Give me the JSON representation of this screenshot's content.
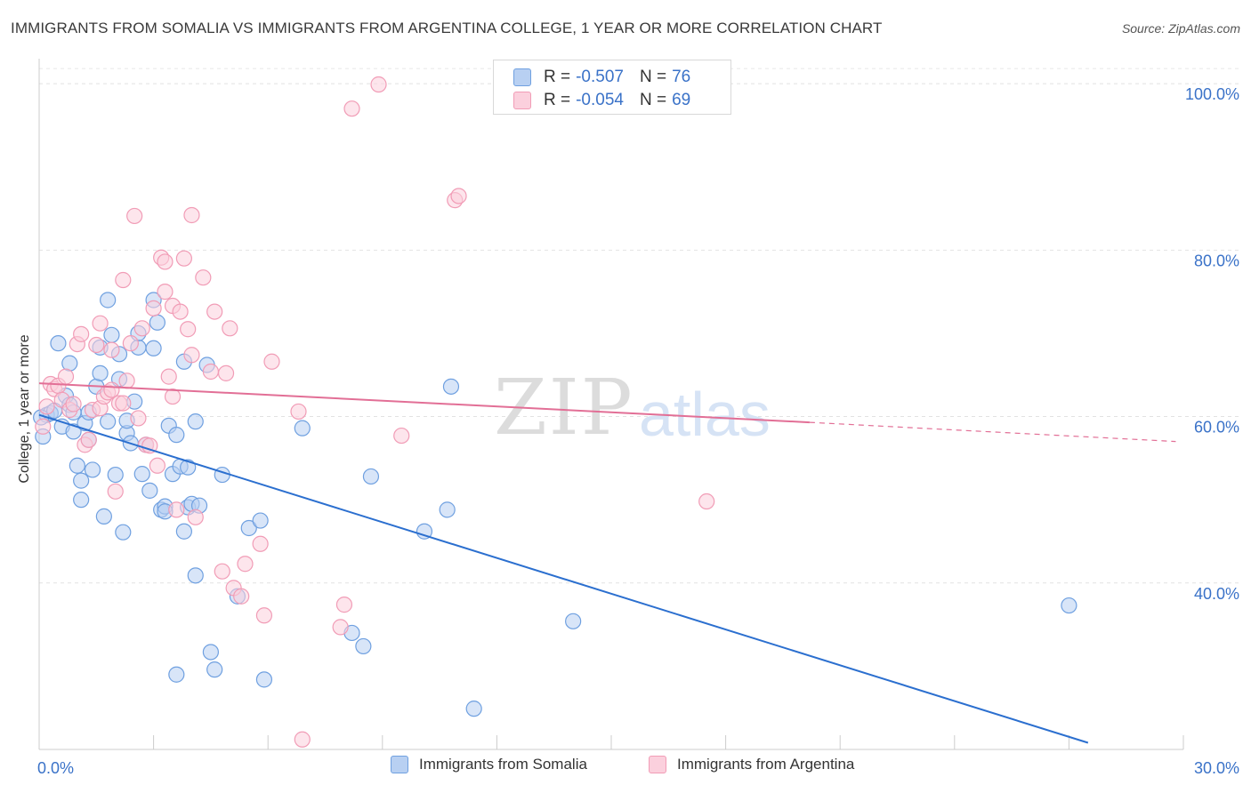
{
  "chart_data": {
    "type": "scatter",
    "title": "IMMIGRANTS FROM SOMALIA VS IMMIGRANTS FROM ARGENTINA COLLEGE, 1 YEAR OR MORE CORRELATION CHART",
    "source": "Source: ZipAtlas.com",
    "ylabel": "College, 1 year or more",
    "xlabel": "",
    "xlim": [
      0,
      30
    ],
    "ylim": [
      20,
      103
    ],
    "x_ticks": [
      {
        "value": 0,
        "label": "0.0%"
      },
      {
        "value": 30,
        "label": "30.0%"
      }
    ],
    "y_ticks": [
      {
        "value": 100,
        "label": "100.0%"
      },
      {
        "value": 80,
        "label": "80.0%"
      },
      {
        "value": 60,
        "label": "60.0%"
      },
      {
        "value": 40,
        "label": "40.0%"
      }
    ],
    "watermark": {
      "part1": "ZIP",
      "part2": "atlas"
    },
    "legend": [
      {
        "r_label": "R =",
        "r_value": "-0.507",
        "n_label": "N =",
        "n_value": "76"
      },
      {
        "r_label": "R =",
        "r_value": "-0.054",
        "n_label": "N =",
        "n_value": 69
      }
    ],
    "series": [
      {
        "name": "Immigrants from Somalia",
        "color": "#6fa0e0",
        "fill": "#b8d0f2",
        "line_color": "#2b6fcf",
        "trend": {
          "x0": 0,
          "y0": 60.2,
          "x1": 27.5,
          "y1": 20.8,
          "dash_to": null
        },
        "points": [
          [
            0.1,
            57.6
          ],
          [
            0.2,
            60.2
          ],
          [
            0.3,
            60.4
          ],
          [
            0.4,
            60.7
          ],
          [
            0.5,
            68.8
          ],
          [
            0.6,
            58.8
          ],
          [
            0.7,
            62.5
          ],
          [
            0.8,
            61.4
          ],
          [
            0.9,
            58.2
          ],
          [
            0.8,
            66.4
          ],
          [
            0.9,
            60.5
          ],
          [
            1.0,
            54.1
          ],
          [
            1.1,
            52.3
          ],
          [
            1.1,
            50.0
          ],
          [
            1.2,
            59.2
          ],
          [
            1.3,
            60.5
          ],
          [
            1.3,
            57.2
          ],
          [
            1.4,
            53.6
          ],
          [
            1.5,
            63.6
          ],
          [
            1.6,
            68.3
          ],
          [
            1.6,
            65.2
          ],
          [
            1.7,
            48.0
          ],
          [
            1.8,
            74.0
          ],
          [
            1.8,
            59.4
          ],
          [
            1.9,
            69.8
          ],
          [
            2.0,
            53.0
          ],
          [
            2.1,
            64.5
          ],
          [
            2.1,
            67.5
          ],
          [
            2.2,
            46.1
          ],
          [
            2.3,
            58.0
          ],
          [
            2.3,
            59.5
          ],
          [
            2.4,
            56.8
          ],
          [
            2.5,
            61.8
          ],
          [
            2.6,
            68.3
          ],
          [
            2.6,
            70.0
          ],
          [
            2.7,
            53.1
          ],
          [
            2.8,
            56.6
          ],
          [
            2.9,
            51.1
          ],
          [
            3.0,
            68.2
          ],
          [
            3.0,
            74.0
          ],
          [
            3.1,
            71.3
          ],
          [
            3.2,
            48.8
          ],
          [
            3.3,
            49.2
          ],
          [
            3.3,
            48.6
          ],
          [
            3.4,
            58.9
          ],
          [
            3.5,
            53.1
          ],
          [
            3.6,
            29.0
          ],
          [
            3.6,
            57.8
          ],
          [
            3.7,
            54.0
          ],
          [
            3.8,
            66.6
          ],
          [
            3.8,
            46.2
          ],
          [
            3.9,
            53.9
          ],
          [
            3.9,
            49.1
          ],
          [
            4.0,
            49.5
          ],
          [
            4.1,
            40.9
          ],
          [
            4.1,
            59.4
          ],
          [
            4.2,
            49.3
          ],
          [
            4.4,
            66.2
          ],
          [
            4.5,
            31.7
          ],
          [
            4.6,
            29.6
          ],
          [
            4.8,
            53.0
          ],
          [
            5.2,
            38.4
          ],
          [
            5.5,
            46.6
          ],
          [
            5.8,
            47.5
          ],
          [
            5.9,
            28.4
          ],
          [
            6.9,
            58.6
          ],
          [
            8.2,
            34.0
          ],
          [
            8.5,
            32.4
          ],
          [
            8.7,
            52.8
          ],
          [
            10.1,
            46.2
          ],
          [
            10.7,
            48.8
          ],
          [
            10.8,
            63.6
          ],
          [
            11.4,
            24.9
          ],
          [
            14.0,
            35.4
          ],
          [
            27.0,
            37.3
          ],
          [
            0.05,
            59.9
          ]
        ]
      },
      {
        "name": "Immigrants from Argentina",
        "color": "#f19cb6",
        "fill": "#fbd0dd",
        "line_color": "#e26f96",
        "trend": {
          "x0": 0,
          "y0": 64.0,
          "x1": 20.2,
          "y1": 59.3,
          "dash_to": {
            "x": 29.8,
            "y": 57.0
          }
        },
        "points": [
          [
            0.1,
            58.8
          ],
          [
            0.2,
            61.2
          ],
          [
            0.3,
            63.9
          ],
          [
            0.4,
            63.3
          ],
          [
            0.5,
            63.7
          ],
          [
            0.6,
            62.0
          ],
          [
            0.7,
            64.8
          ],
          [
            0.8,
            60.8
          ],
          [
            0.9,
            61.5
          ],
          [
            1.0,
            68.7
          ],
          [
            1.1,
            69.9
          ],
          [
            1.2,
            56.6
          ],
          [
            1.3,
            57.2
          ],
          [
            1.4,
            60.8
          ],
          [
            1.5,
            68.6
          ],
          [
            1.6,
            61.0
          ],
          [
            1.6,
            71.2
          ],
          [
            1.7,
            62.4
          ],
          [
            1.8,
            62.9
          ],
          [
            1.9,
            68.0
          ],
          [
            1.9,
            63.2
          ],
          [
            2.0,
            51.0
          ],
          [
            2.1,
            61.6
          ],
          [
            2.2,
            61.6
          ],
          [
            2.2,
            76.4
          ],
          [
            2.3,
            64.3
          ],
          [
            2.4,
            68.8
          ],
          [
            2.5,
            84.1
          ],
          [
            2.6,
            59.8
          ],
          [
            2.7,
            70.6
          ],
          [
            2.8,
            56.6
          ],
          [
            2.9,
            56.5
          ],
          [
            3.0,
            73.0
          ],
          [
            3.1,
            54.1
          ],
          [
            3.2,
            79.1
          ],
          [
            3.3,
            75.0
          ],
          [
            3.3,
            78.6
          ],
          [
            3.4,
            64.8
          ],
          [
            3.5,
            62.4
          ],
          [
            3.5,
            73.3
          ],
          [
            3.6,
            48.8
          ],
          [
            3.7,
            72.6
          ],
          [
            3.8,
            79.0
          ],
          [
            3.9,
            70.5
          ],
          [
            4.0,
            67.4
          ],
          [
            4.0,
            84.2
          ],
          [
            4.1,
            47.9
          ],
          [
            4.3,
            76.7
          ],
          [
            4.5,
            65.4
          ],
          [
            4.6,
            72.6
          ],
          [
            4.8,
            41.4
          ],
          [
            4.9,
            65.2
          ],
          [
            5.0,
            70.6
          ],
          [
            5.1,
            39.4
          ],
          [
            5.3,
            38.4
          ],
          [
            5.4,
            42.3
          ],
          [
            5.8,
            44.7
          ],
          [
            5.9,
            36.1
          ],
          [
            6.1,
            66.6
          ],
          [
            6.8,
            60.6
          ],
          [
            6.9,
            21.2
          ],
          [
            7.9,
            34.7
          ],
          [
            8.0,
            37.4
          ],
          [
            8.2,
            97.0
          ],
          [
            8.9,
            99.9
          ],
          [
            9.5,
            57.7
          ],
          [
            10.9,
            86.0
          ],
          [
            11.0,
            86.5
          ],
          [
            17.5,
            49.8
          ]
        ]
      }
    ]
  }
}
